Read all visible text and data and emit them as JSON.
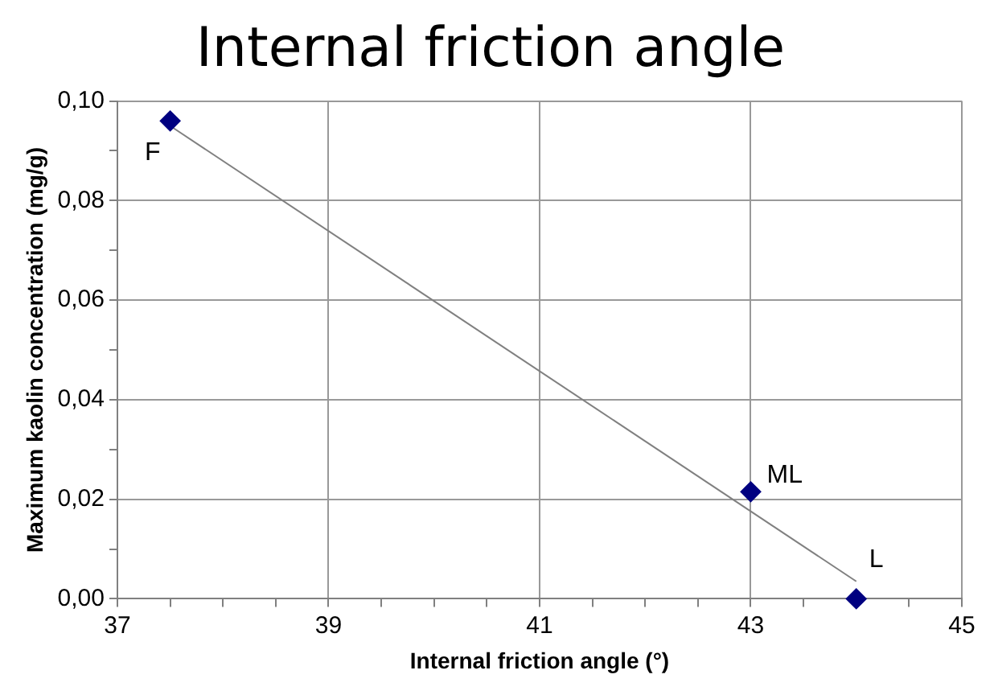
{
  "chart_data": {
    "type": "scatter",
    "title": "Internal friction angle",
    "xlabel": "Internal friction angle (°)",
    "ylabel": "Maximum kaolin concentration (mg/g)",
    "xlim": [
      37,
      45
    ],
    "xticks": [
      37,
      {
        "value": 37.5,
        "label": null
      },
      {
        "value": 38,
        "label": null
      },
      {
        "value": 38.5,
        "label": null
      },
      39,
      {
        "value": 39.5,
        "label": null
      },
      {
        "value": 40,
        "label": null
      },
      {
        "value": 40.5,
        "label": null
      },
      41,
      {
        "value": 41.5,
        "label": null
      },
      {
        "value": 42,
        "label": null
      },
      {
        "value": 42.5,
        "label": null
      },
      43,
      {
        "value": 43.5,
        "label": null
      },
      {
        "value": 44,
        "label": null
      },
      {
        "value": 44.5,
        "label": null
      },
      45
    ],
    "ylim": [
      0,
      0.1
    ],
    "yticks": [
      {
        "value": 0,
        "label": "0,00"
      },
      {
        "value": 0.01,
        "label": null
      },
      {
        "value": 0.02,
        "label": "0,02"
      },
      {
        "value": 0.03,
        "label": null
      },
      {
        "value": 0.04,
        "label": "0,04"
      },
      {
        "value": 0.05,
        "label": null
      },
      {
        "value": 0.06,
        "label": "0,06"
      },
      {
        "value": 0.07,
        "label": null
      },
      {
        "value": 0.08,
        "label": "0,08"
      },
      {
        "value": 0.09,
        "label": null
      },
      {
        "value": 0.1,
        "label": "0,10"
      }
    ],
    "grid": true,
    "legend": false,
    "marker": "diamond",
    "series": [
      {
        "type": "scatter",
        "color": "#000080",
        "x": [
          37.5,
          43,
          44
        ],
        "values": [
          0.096,
          0.0215,
          0
        ]
      },
      {
        "type": "line",
        "color": "#808080",
        "marker": "none",
        "x": [
          37.5,
          44
        ],
        "values": [
          0.095,
          0.0035
        ]
      }
    ],
    "annotations": [
      {
        "text": "F",
        "x": 37.5,
        "y": 0.096
      },
      {
        "text": "ML",
        "x": 43,
        "y": 0.0215
      },
      {
        "text": "L",
        "x": 44,
        "y": 0
      }
    ]
  }
}
